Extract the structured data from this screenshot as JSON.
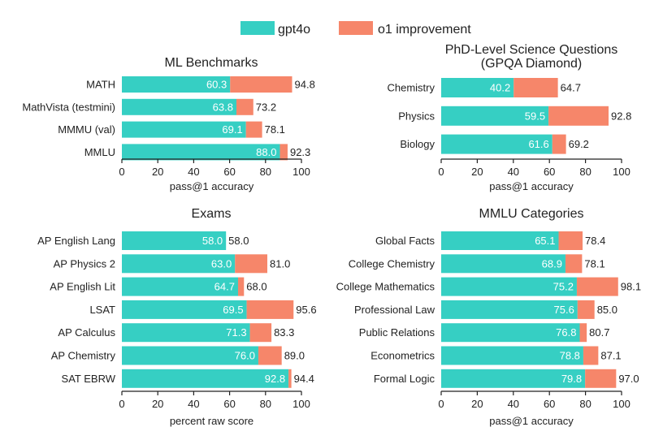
{
  "colors": {
    "gpt4o": "#36cfc3",
    "improvement": "#f6866a",
    "axis": "#222222",
    "text": "#222222"
  },
  "legend": [
    {
      "name": "gpt4o",
      "color_key": "gpt4o"
    },
    {
      "name": "o1 improvement",
      "color_key": "improvement"
    }
  ],
  "chart_data": [
    {
      "type": "bar",
      "orientation": "horizontal",
      "stacked": true,
      "title": "ML Benchmarks",
      "xlabel": "pass@1 accuracy",
      "xlim": [
        0,
        100
      ],
      "ticks": [
        0,
        20,
        40,
        60,
        80,
        100
      ],
      "categories": [
        "MATH",
        "MathVista (testmini)",
        "MMMU (val)",
        "MMLU"
      ],
      "series": [
        {
          "name": "gpt4o",
          "values": [
            60.3,
            63.8,
            69.1,
            88.0
          ]
        },
        {
          "name": "o1 improvement",
          "totals": [
            94.8,
            73.2,
            78.1,
            92.3
          ]
        }
      ]
    },
    {
      "type": "bar",
      "orientation": "horizontal",
      "stacked": true,
      "title": "PhD-Level Science Questions",
      "subtitle": "(GPQA Diamond)",
      "xlabel": "pass@1 accuracy",
      "xlim": [
        0,
        100
      ],
      "ticks": [
        0,
        20,
        40,
        60,
        80,
        100
      ],
      "categories": [
        "Chemistry",
        "Physics",
        "Biology"
      ],
      "series": [
        {
          "name": "gpt4o",
          "values": [
            40.2,
            59.5,
            61.6
          ]
        },
        {
          "name": "o1 improvement",
          "totals": [
            64.7,
            92.8,
            69.2
          ]
        }
      ]
    },
    {
      "type": "bar",
      "orientation": "horizontal",
      "stacked": true,
      "title": "Exams",
      "xlabel": "percent raw score",
      "xlim": [
        0,
        100
      ],
      "ticks": [
        0,
        20,
        40,
        60,
        80,
        100
      ],
      "categories": [
        "AP English Lang",
        "AP Physics 2",
        "AP English Lit",
        "LSAT",
        "AP Calculus",
        "AP Chemistry",
        "SAT EBRW"
      ],
      "series": [
        {
          "name": "gpt4o",
          "values": [
            58.0,
            63.0,
            64.7,
            69.5,
            71.3,
            76.0,
            92.8
          ]
        },
        {
          "name": "o1 improvement",
          "totals": [
            58.0,
            81.0,
            68.0,
            95.6,
            83.3,
            89.0,
            94.4
          ]
        }
      ]
    },
    {
      "type": "bar",
      "orientation": "horizontal",
      "stacked": true,
      "title": "MMLU Categories",
      "xlabel": "pass@1 accuracy",
      "xlim": [
        0,
        100
      ],
      "ticks": [
        0,
        20,
        40,
        60,
        80,
        100
      ],
      "categories": [
        "Global Facts",
        "College Chemistry",
        "College Mathematics",
        "Professional Law",
        "Public Relations",
        "Econometrics",
        "Formal Logic"
      ],
      "series": [
        {
          "name": "gpt4o",
          "values": [
            65.1,
            68.9,
            75.2,
            75.6,
            76.8,
            78.8,
            79.8
          ]
        },
        {
          "name": "o1 improvement",
          "totals": [
            78.4,
            78.1,
            98.1,
            85.0,
            80.7,
            87.1,
            97.0
          ]
        }
      ]
    }
  ]
}
